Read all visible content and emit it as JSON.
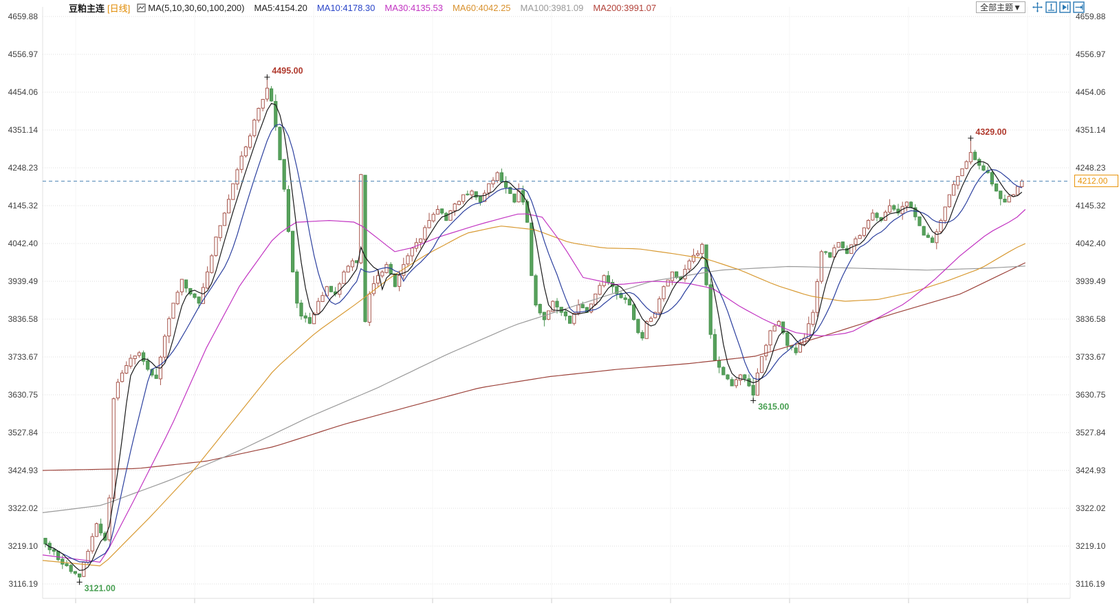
{
  "header": {
    "symbol": "豆粕主连",
    "period": "[日线]",
    "ma_param_label": "MA(5,10,30,60,100,200)",
    "ma_values": [
      {
        "label": "MA5:4154.20",
        "color": "#222222"
      },
      {
        "label": "MA10:4178.30",
        "color": "#2b46c8"
      },
      {
        "label": "MA30:4135.53",
        "color": "#c234c2"
      },
      {
        "label": "MA60:4042.25",
        "color": "#d8912e"
      },
      {
        "label": "MA100:3981.09",
        "color": "#9a9a9a"
      },
      {
        "label": "MA200:3991.07",
        "color": "#b2423a"
      }
    ]
  },
  "toolbar": {
    "theme_button_label": "全部主题▼",
    "icon_color": "#2878b4",
    "icons": [
      "pan-move-icon",
      "fit-vertical-icon",
      "play-forward-icon",
      "step-forward-icon"
    ]
  },
  "axis": {
    "labels": [
      "4659.88",
      "4556.97",
      "4454.06",
      "4351.14",
      "4248.23",
      "4145.32",
      "4042.40",
      "3939.49",
      "3836.58",
      "3733.67",
      "3630.75",
      "3527.84",
      "3424.93",
      "3322.02",
      "3219.10",
      "3116.19"
    ],
    "top_price": 4659.88,
    "bottom_price": 3116.19,
    "label_color": "#404040"
  },
  "price_line": {
    "value_text": "4212.00",
    "price": 4212,
    "line_color": "#4a82b4",
    "label_color": "#e8940a"
  },
  "annotations": [
    {
      "text": "4495.00",
      "price": 4495,
      "index": 52,
      "type": "high",
      "color": "#b03a2e"
    },
    {
      "text": "4329.00",
      "price": 4329,
      "index": 217,
      "type": "high",
      "color": "#b03a2e"
    },
    {
      "text": "3615.00",
      "price": 3615,
      "index": 166,
      "type": "low",
      "color": "#4aa054"
    },
    {
      "text": "3121.00",
      "price": 3121,
      "index": 8,
      "type": "low",
      "color": "#4aa054"
    }
  ],
  "chart_data": {
    "type": "candlestick",
    "title": "豆粕主连 日线",
    "ylim": [
      3116.19,
      4659.88
    ],
    "grid": true,
    "n_candles": 230,
    "last_close": 4212,
    "up_style": {
      "stroke": "#a6554b",
      "fill": "#ffffff"
    },
    "down_style": {
      "stroke": "#4a9350",
      "fill": "#57a25c"
    },
    "close_keyframes": [
      [
        0,
        3225
      ],
      [
        2,
        3205
      ],
      [
        4,
        3170
      ],
      [
        6,
        3150
      ],
      [
        8,
        3135
      ],
      [
        9,
        3175
      ],
      [
        10,
        3205
      ],
      [
        11,
        3245
      ],
      [
        12,
        3280
      ],
      [
        13,
        3255
      ],
      [
        14,
        3235
      ],
      [
        15,
        3350
      ],
      [
        16,
        3620
      ],
      [
        17,
        3665
      ],
      [
        18,
        3690
      ],
      [
        20,
        3730
      ],
      [
        22,
        3745
      ],
      [
        24,
        3700
      ],
      [
        26,
        3675
      ],
      [
        28,
        3790
      ],
      [
        30,
        3880
      ],
      [
        32,
        3945
      ],
      [
        34,
        3905
      ],
      [
        36,
        3880
      ],
      [
        38,
        3965
      ],
      [
        40,
        4060
      ],
      [
        42,
        4125
      ],
      [
        44,
        4205
      ],
      [
        46,
        4280
      ],
      [
        48,
        4335
      ],
      [
        50,
        4410
      ],
      [
        52,
        4465
      ],
      [
        53,
        4430
      ],
      [
        54,
        4360
      ],
      [
        55,
        4270
      ],
      [
        56,
        4190
      ],
      [
        57,
        4075
      ],
      [
        58,
        3965
      ],
      [
        59,
        3880
      ],
      [
        60,
        3845
      ],
      [
        62,
        3825
      ],
      [
        64,
        3885
      ],
      [
        66,
        3925
      ],
      [
        68,
        3905
      ],
      [
        70,
        3965
      ],
      [
        72,
        3995
      ],
      [
        73,
        3990
      ],
      [
        74,
        4230
      ],
      [
        75,
        3830
      ],
      [
        76,
        3905
      ],
      [
        78,
        3955
      ],
      [
        80,
        3985
      ],
      [
        82,
        3925
      ],
      [
        84,
        3985
      ],
      [
        86,
        4030
      ],
      [
        88,
        4055
      ],
      [
        90,
        4105
      ],
      [
        92,
        4135
      ],
      [
        94,
        4105
      ],
      [
        96,
        4150
      ],
      [
        98,
        4175
      ],
      [
        100,
        4185
      ],
      [
        102,
        4155
      ],
      [
        104,
        4205
      ],
      [
        106,
        4235
      ],
      [
        108,
        4195
      ],
      [
        110,
        4155
      ],
      [
        111,
        4185
      ],
      [
        112,
        4155
      ],
      [
        113,
        4100
      ],
      [
        114,
        3955
      ],
      [
        115,
        3875
      ],
      [
        117,
        3835
      ],
      [
        119,
        3885
      ],
      [
        121,
        3855
      ],
      [
        123,
        3825
      ],
      [
        125,
        3875
      ],
      [
        127,
        3855
      ],
      [
        129,
        3905
      ],
      [
        131,
        3955
      ],
      [
        133,
        3925
      ],
      [
        135,
        3895
      ],
      [
        137,
        3875
      ],
      [
        139,
        3800
      ],
      [
        140,
        3785
      ],
      [
        141,
        3830
      ],
      [
        143,
        3855
      ],
      [
        145,
        3925
      ],
      [
        147,
        3965
      ],
      [
        149,
        3945
      ],
      [
        151,
        3995
      ],
      [
        153,
        4015
      ],
      [
        154,
        4040
      ],
      [
        155,
        3930
      ],
      [
        156,
        3795
      ],
      [
        157,
        3725
      ],
      [
        159,
        3685
      ],
      [
        161,
        3655
      ],
      [
        163,
        3685
      ],
      [
        165,
        3655
      ],
      [
        166,
        3630
      ],
      [
        167,
        3690
      ],
      [
        168,
        3735
      ],
      [
        170,
        3805
      ],
      [
        172,
        3830
      ],
      [
        174,
        3765
      ],
      [
        176,
        3745
      ],
      [
        178,
        3785
      ],
      [
        180,
        3855
      ],
      [
        182,
        4020
      ],
      [
        184,
        4005
      ],
      [
        186,
        4045
      ],
      [
        188,
        4015
      ],
      [
        190,
        4055
      ],
      [
        192,
        4085
      ],
      [
        194,
        4125
      ],
      [
        196,
        4105
      ],
      [
        198,
        4145
      ],
      [
        200,
        4125
      ],
      [
        202,
        4155
      ],
      [
        204,
        4115
      ],
      [
        206,
        4065
      ],
      [
        208,
        4045
      ],
      [
        210,
        4105
      ],
      [
        212,
        4175
      ],
      [
        214,
        4225
      ],
      [
        216,
        4265
      ],
      [
        217,
        4290
      ],
      [
        219,
        4255
      ],
      [
        221,
        4235
      ],
      [
        223,
        4185
      ],
      [
        225,
        4155
      ],
      [
        227,
        4175
      ],
      [
        229,
        4212
      ]
    ],
    "anchors": {
      "8": {
        "low": 3121
      },
      "52": {
        "high": 4495
      },
      "166": {
        "low": 3615
      },
      "217": {
        "high": 4329
      },
      "229": {
        "close": 4212
      }
    },
    "ma_computed": [
      {
        "name": "MA10",
        "window": 10,
        "color": "#2b3f9e"
      },
      {
        "name": "MA5",
        "window": 5,
        "color": "#191919"
      }
    ],
    "ma_overlays": [
      {
        "name": "MA200",
        "color": "#9c423a",
        "points": [
          [
            0,
            3425
          ],
          [
            0.096,
            3430
          ],
          [
            0.166,
            3450
          ],
          [
            0.236,
            3490
          ],
          [
            0.306,
            3550
          ],
          [
            0.375,
            3600
          ],
          [
            0.445,
            3650
          ],
          [
            0.515,
            3680
          ],
          [
            0.585,
            3700
          ],
          [
            0.655,
            3715
          ],
          [
            0.724,
            3735
          ],
          [
            0.794,
            3790
          ],
          [
            0.864,
            3850
          ],
          [
            0.934,
            3905
          ],
          [
            1,
            3990
          ]
        ]
      },
      {
        "name": "MA100",
        "color": "#9a9a9a",
        "points": [
          [
            0,
            3310
          ],
          [
            0.06,
            3330
          ],
          [
            0.131,
            3400
          ],
          [
            0.201,
            3480
          ],
          [
            0.271,
            3570
          ],
          [
            0.341,
            3650
          ],
          [
            0.411,
            3740
          ],
          [
            0.48,
            3820
          ],
          [
            0.55,
            3880
          ],
          [
            0.62,
            3940
          ],
          [
            0.69,
            3970
          ],
          [
            0.76,
            3980
          ],
          [
            0.83,
            3975
          ],
          [
            0.9,
            3970
          ],
          [
            0.96,
            3975
          ],
          [
            1,
            3981
          ]
        ]
      },
      {
        "name": "MA60",
        "color": "#d89a33",
        "points": [
          [
            0,
            3180
          ],
          [
            0.06,
            3165
          ],
          [
            0.11,
            3300
          ],
          [
            0.152,
            3420
          ],
          [
            0.194,
            3560
          ],
          [
            0.236,
            3700
          ],
          [
            0.278,
            3800
          ],
          [
            0.32,
            3880
          ],
          [
            0.354,
            3950
          ],
          [
            0.389,
            4010
          ],
          [
            0.431,
            4070
          ],
          [
            0.466,
            4090
          ],
          [
            0.501,
            4080
          ],
          [
            0.536,
            4045
          ],
          [
            0.571,
            4030
          ],
          [
            0.606,
            4028
          ],
          [
            0.641,
            4015
          ],
          [
            0.676,
            4000
          ],
          [
            0.71,
            3970
          ],
          [
            0.745,
            3930
          ],
          [
            0.78,
            3900
          ],
          [
            0.815,
            3885
          ],
          [
            0.85,
            3890
          ],
          [
            0.885,
            3910
          ],
          [
            0.92,
            3940
          ],
          [
            0.955,
            3975
          ],
          [
            0.99,
            4030
          ],
          [
            1,
            4042
          ]
        ]
      },
      {
        "name": "MA30",
        "color": "#c234c2",
        "points": [
          [
            0,
            3195
          ],
          [
            0.06,
            3175
          ],
          [
            0.096,
            3360
          ],
          [
            0.131,
            3545
          ],
          [
            0.166,
            3755
          ],
          [
            0.201,
            3930
          ],
          [
            0.236,
            4060
          ],
          [
            0.257,
            4100
          ],
          [
            0.292,
            4105
          ],
          [
            0.32,
            4100
          ],
          [
            0.344,
            4050
          ],
          [
            0.358,
            4020
          ],
          [
            0.375,
            4030
          ],
          [
            0.403,
            4060
          ],
          [
            0.445,
            4095
          ],
          [
            0.487,
            4125
          ],
          [
            0.508,
            4115
          ],
          [
            0.529,
            4040
          ],
          [
            0.55,
            3950
          ],
          [
            0.585,
            3930
          ],
          [
            0.62,
            3940
          ],
          [
            0.655,
            3935
          ],
          [
            0.682,
            3920
          ],
          [
            0.71,
            3870
          ],
          [
            0.738,
            3830
          ],
          [
            0.766,
            3800
          ],
          [
            0.794,
            3790
          ],
          [
            0.822,
            3800
          ],
          [
            0.85,
            3840
          ],
          [
            0.878,
            3880
          ],
          [
            0.906,
            3940
          ],
          [
            0.934,
            4010
          ],
          [
            0.962,
            4070
          ],
          [
            0.99,
            4110
          ],
          [
            1,
            4135
          ]
        ]
      }
    ]
  }
}
